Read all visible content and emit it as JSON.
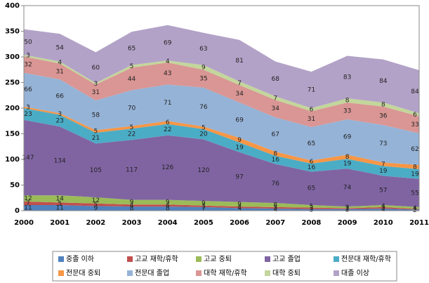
{
  "chart_data": {
    "type": "stacked_area",
    "categories": [
      "2000",
      "2001",
      "2002",
      "2003",
      "2004",
      "2005",
      "2006",
      "2007",
      "2008",
      "2009",
      "2010",
      "2011"
    ],
    "ylim": [
      0,
      400
    ],
    "yticks": [
      0,
      50,
      100,
      150,
      200,
      250,
      300,
      350,
      400
    ],
    "grid": false,
    "legend": "bottom",
    "series": [
      {
        "name": "중졸 이하",
        "color": "#4f81bd",
        "values": [
          11,
          11,
          9,
          8,
          8,
          7,
          5,
          4,
          3,
          3,
          4,
          2
        ]
      },
      {
        "name": "고교 재학/휴학",
        "color": "#c0504d",
        "values": [
          7,
          5,
          5,
          4,
          4,
          3,
          3,
          3,
          3,
          2,
          3,
          1
        ]
      },
      {
        "name": "고교 중퇴",
        "color": "#9bbb59",
        "values": [
          12,
          14,
          12,
          9,
          9,
          9,
          9,
          8,
          5,
          3,
          4,
          4
        ]
      },
      {
        "name": "고교 졸업",
        "color": "#8064a2",
        "values": [
          147,
          134,
          105,
          117,
          126,
          120,
          97,
          76,
          65,
          74,
          57,
          55
        ]
      },
      {
        "name": "전문대 재학/휴학",
        "color": "#4bacc6",
        "values": [
          23,
          23,
          21,
          22,
          22,
          20,
          19,
          16,
          16,
          19,
          19,
          19
        ]
      },
      {
        "name": "전문대 중퇴",
        "color": "#f79646",
        "values": [
          3,
          3,
          5,
          5,
          6,
          5,
          9,
          8,
          6,
          8,
          7,
          8
        ]
      },
      {
        "name": "전문대 졸업",
        "color": "#95b3d7",
        "values": [
          66,
          66,
          58,
          70,
          71,
          76,
          69,
          67,
          65,
          69,
          73,
          62
        ]
      },
      {
        "name": "대학 재학/휴학",
        "color": "#d99694",
        "values": [
          32,
          31,
          31,
          44,
          43,
          35,
          34,
          34,
          31,
          33,
          36,
          33
        ]
      },
      {
        "name": "대학 중퇴",
        "color": "#c3d69b",
        "values": [
          3,
          4,
          3,
          5,
          4,
          9,
          7,
          7,
          6,
          8,
          8,
          6
        ]
      },
      {
        "name": "대졸 이상",
        "color": "#b3a2c7",
        "values": [
          50,
          54,
          60,
          65,
          69,
          63,
          81,
          68,
          71,
          83,
          84,
          84
        ]
      }
    ]
  }
}
